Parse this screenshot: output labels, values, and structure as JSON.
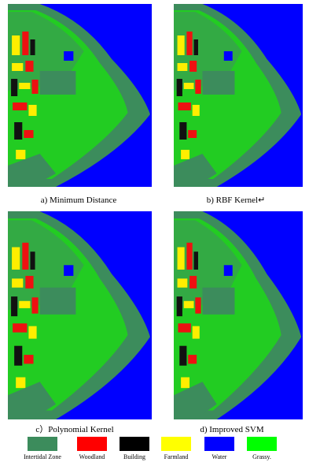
{
  "panels": [
    {
      "caption": "a) Minimum Distance"
    },
    {
      "caption": "b) RBF Kernel↵"
    },
    {
      "caption": "c）Polynomial Kernel"
    },
    {
      "caption": "d) Improved SVM"
    }
  ],
  "legend": [
    {
      "label": "Intertidal Zone"
    },
    {
      "label": "Woodland"
    },
    {
      "label": "Building"
    },
    {
      "label": "Farmland"
    },
    {
      "label": "Water"
    },
    {
      "label": "Grassy."
    }
  ]
}
